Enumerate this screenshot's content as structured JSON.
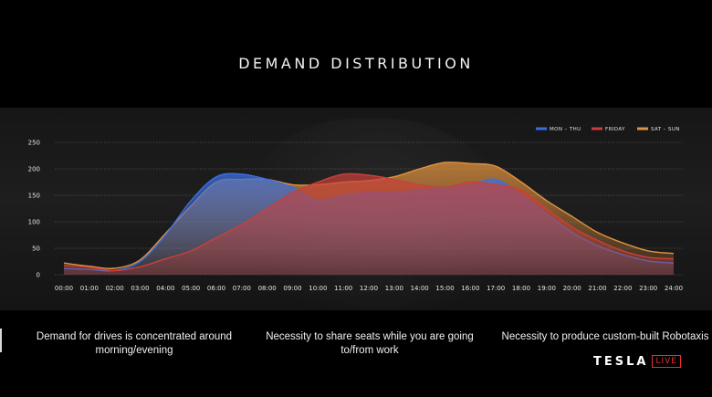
{
  "slide": {
    "title": "DEMAND DISTRIBUTION",
    "captions": [
      "Demand for drives is concentrated around morning/evening",
      "Necessity to share seats while you are going to/from work",
      "Necessity to produce custom-built Robotaxis"
    ],
    "brand": {
      "word": "TESLA",
      "badge": "LIVE"
    }
  },
  "chart_data": {
    "type": "area",
    "title": "DEMAND DISTRIBUTION",
    "xlabel": "",
    "ylabel": "",
    "x": [
      "00:00",
      "01:00",
      "02:00",
      "03:00",
      "04:00",
      "05:00",
      "06:00",
      "07:00",
      "08:00",
      "09:00",
      "10:00",
      "11:00",
      "12:00",
      "13:00",
      "14:00",
      "15:00",
      "16:00",
      "17:00",
      "18:00",
      "19:00",
      "20:00",
      "21:00",
      "22:00",
      "23:00",
      "24:00"
    ],
    "yticks": [
      0,
      50,
      100,
      150,
      200,
      250
    ],
    "ylim": [
      0,
      250
    ],
    "grid": true,
    "legend": "top-right",
    "series": [
      {
        "name": "MON – THU",
        "color": "#3a6fe0",
        "values": [
          12,
          10,
          8,
          25,
          75,
          140,
          185,
          190,
          180,
          165,
          140,
          150,
          155,
          155,
          160,
          165,
          170,
          180,
          150,
          115,
          80,
          55,
          38,
          26,
          22
        ]
      },
      {
        "name": "FRIDAY",
        "color": "#c9403a",
        "values": [
          18,
          14,
          8,
          15,
          30,
          45,
          70,
          95,
          125,
          155,
          175,
          190,
          188,
          180,
          170,
          165,
          175,
          170,
          160,
          125,
          90,
          65,
          45,
          33,
          30
        ]
      },
      {
        "name": "SAT – SUN",
        "color": "#e0923f",
        "values": [
          22,
          16,
          12,
          28,
          78,
          130,
          175,
          180,
          180,
          170,
          170,
          175,
          178,
          185,
          200,
          212,
          210,
          205,
          175,
          140,
          110,
          80,
          60,
          45,
          40
        ]
      }
    ]
  }
}
